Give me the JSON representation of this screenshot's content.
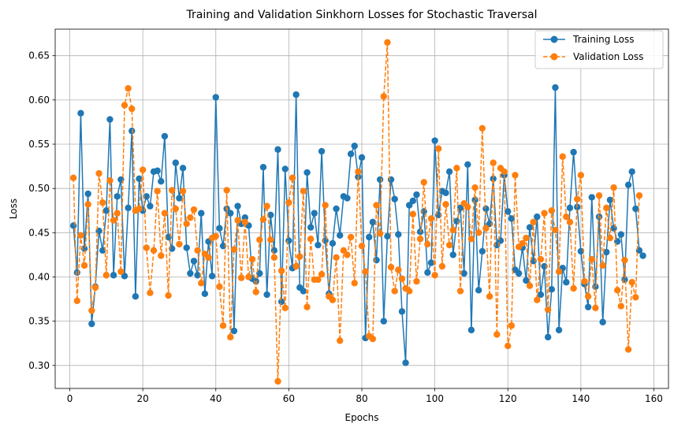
{
  "chart_data": {
    "type": "line",
    "title": "Training and Validation Sinkhorn Losses for Stochastic Traversal",
    "xlabel": "Epochs",
    "ylabel": "Loss",
    "xlim": [
      -4,
      164
    ],
    "ylim": [
      0.274,
      0.68
    ],
    "xticks": [
      0,
      20,
      40,
      60,
      80,
      100,
      120,
      140,
      160
    ],
    "yticks": [
      0.3,
      0.35,
      0.4,
      0.45,
      0.5,
      0.55,
      0.6,
      0.65
    ],
    "ytick_labels": [
      "0.30",
      "0.35",
      "0.40",
      "0.45",
      "0.50",
      "0.55",
      "0.60",
      "0.65"
    ],
    "grid": true,
    "legend_position": "top-right",
    "series": [
      {
        "name": "Training Loss",
        "color": "#1f77b4",
        "linestyle": "solid",
        "marker": "circle",
        "x_start": 1,
        "values": [
          0.458,
          0.405,
          0.585,
          0.432,
          0.494,
          0.347,
          0.389,
          0.452,
          0.43,
          0.475,
          0.578,
          0.402,
          0.491,
          0.51,
          0.401,
          0.478,
          0.565,
          0.378,
          0.511,
          0.475,
          0.491,
          0.48,
          0.519,
          0.52,
          0.508,
          0.559,
          0.445,
          0.432,
          0.529,
          0.489,
          0.523,
          0.433,
          0.404,
          0.418,
          0.402,
          0.472,
          0.381,
          0.44,
          0.401,
          0.603,
          0.455,
          0.435,
          0.477,
          0.472,
          0.339,
          0.48,
          0.46,
          0.467,
          0.458,
          0.398,
          0.395,
          0.404,
          0.524,
          0.38,
          0.47,
          0.43,
          0.544,
          0.372,
          0.522,
          0.441,
          0.41,
          0.606,
          0.388,
          0.384,
          0.518,
          0.456,
          0.472,
          0.436,
          0.542,
          0.441,
          0.381,
          0.438,
          0.477,
          0.447,
          0.491,
          0.489,
          0.539,
          0.548,
          0.513,
          0.535,
          0.331,
          0.445,
          0.462,
          0.419,
          0.51,
          0.35,
          0.446,
          0.51,
          0.488,
          0.448,
          0.361,
          0.303,
          0.481,
          0.486,
          0.493,
          0.451,
          0.474,
          0.405,
          0.416,
          0.554,
          0.47,
          0.497,
          0.495,
          0.519,
          0.425,
          0.463,
          0.478,
          0.404,
          0.527,
          0.34,
          0.487,
          0.385,
          0.429,
          0.477,
          0.46,
          0.511,
          0.436,
          0.441,
          0.515,
          0.474,
          0.466,
          0.408,
          0.404,
          0.433,
          0.396,
          0.456,
          0.418,
          0.468,
          0.38,
          0.412,
          0.332,
          0.386,
          0.614,
          0.34,
          0.41,
          0.394,
          0.478,
          0.541,
          0.479,
          0.429,
          0.392,
          0.366,
          0.49,
          0.389,
          0.468,
          0.349,
          0.428,
          0.487,
          0.455,
          0.44,
          0.448,
          0.397,
          0.504,
          0.519,
          0.477,
          0.43,
          0.424
        ]
      },
      {
        "name": "Validation Loss",
        "color": "#ff7f0e",
        "linestyle": "dashed",
        "marker": "circle",
        "x_start": 1,
        "values": [
          0.512,
          0.373,
          0.447,
          0.413,
          0.482,
          0.362,
          0.388,
          0.517,
          0.484,
          0.402,
          0.509,
          0.464,
          0.472,
          0.406,
          0.594,
          0.613,
          0.59,
          0.475,
          0.477,
          0.521,
          0.433,
          0.382,
          0.43,
          0.497,
          0.424,
          0.472,
          0.379,
          0.498,
          0.477,
          0.437,
          0.497,
          0.46,
          0.467,
          0.476,
          0.43,
          0.393,
          0.426,
          0.422,
          0.444,
          0.446,
          0.389,
          0.345,
          0.498,
          0.332,
          0.431,
          0.464,
          0.399,
          0.462,
          0.4,
          0.42,
          0.383,
          0.442,
          0.465,
          0.48,
          0.442,
          0.422,
          0.282,
          0.407,
          0.365,
          0.484,
          0.512,
          0.412,
          0.423,
          0.497,
          0.366,
          0.443,
          0.397,
          0.397,
          0.403,
          0.481,
          0.378,
          0.374,
          0.422,
          0.328,
          0.43,
          0.425,
          0.445,
          0.393,
          0.519,
          0.435,
          0.406,
          0.333,
          0.33,
          0.481,
          0.449,
          0.604,
          0.665,
          0.411,
          0.384,
          0.408,
          0.398,
          0.387,
          0.384,
          0.471,
          0.395,
          0.443,
          0.507,
          0.437,
          0.466,
          0.402,
          0.545,
          0.412,
          0.482,
          0.436,
          0.453,
          0.523,
          0.384,
          0.483,
          0.479,
          0.443,
          0.501,
          0.45,
          0.568,
          0.455,
          0.378,
          0.529,
          0.335,
          0.523,
          0.519,
          0.322,
          0.345,
          0.515,
          0.434,
          0.438,
          0.444,
          0.39,
          0.462,
          0.374,
          0.42,
          0.472,
          0.363,
          0.475,
          0.453,
          0.406,
          0.536,
          0.468,
          0.462,
          0.387,
          0.488,
          0.515,
          0.395,
          0.378,
          0.42,
          0.365,
          0.492,
          0.413,
          0.478,
          0.444,
          0.501,
          0.385,
          0.367,
          0.419,
          0.318,
          0.394,
          0.377,
          0.492
        ]
      }
    ]
  }
}
